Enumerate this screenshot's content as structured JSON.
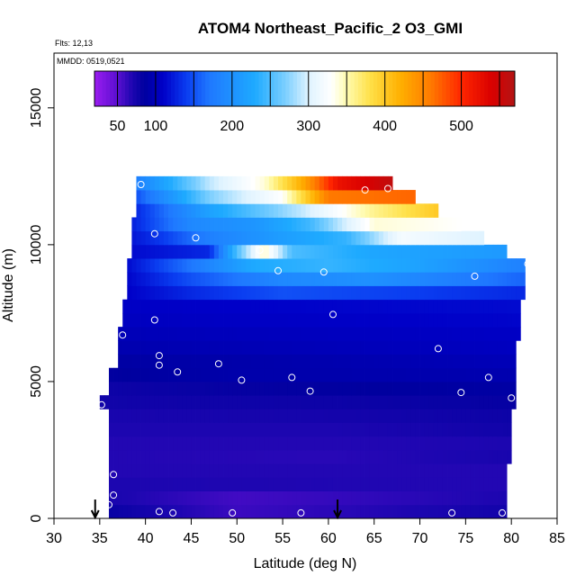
{
  "chart_data": {
    "type": "heatmap",
    "title": "ATOM4 Northeast_Pacific_2 O3_GMI",
    "flights_label": "Flts: 12,13",
    "dates_label": "MMDD: 0519,0521",
    "xlabel": "Latitude (deg N)",
    "ylabel": "Altitude (m)",
    "xlim": [
      30,
      85
    ],
    "ylim": [
      0,
      17000
    ],
    "x_ticks": [
      30,
      35,
      40,
      45,
      50,
      55,
      60,
      65,
      70,
      75,
      80,
      85
    ],
    "y_ticks": [
      0,
      5000,
      10000,
      15000
    ],
    "colorbar": {
      "min": 20,
      "max": 570,
      "tick_values": [
        50,
        100,
        200,
        300,
        400,
        500
      ],
      "separators": [
        150,
        250,
        350,
        450,
        550
      ],
      "stops": [
        [
          20,
          "#9a1cf0"
        ],
        [
          50,
          "#5a0fd0"
        ],
        [
          70,
          "#1c06b0"
        ],
        [
          85,
          "#00009f"
        ],
        [
          110,
          "#0000c8"
        ],
        [
          140,
          "#0a3cf0"
        ],
        [
          170,
          "#1f78ff"
        ],
        [
          230,
          "#1eaaff"
        ],
        [
          270,
          "#7ccfff"
        ],
        [
          300,
          "#dff3ff"
        ],
        [
          330,
          "#ffffff"
        ],
        [
          350,
          "#fffbb0"
        ],
        [
          380,
          "#ffe14a"
        ],
        [
          420,
          "#ffb000"
        ],
        [
          460,
          "#ff7a00"
        ],
        [
          500,
          "#ff2600"
        ],
        [
          540,
          "#d90000"
        ],
        [
          570,
          "#b31414"
        ]
      ]
    },
    "altitude_bins": [
      {
        "alt_min": 0,
        "alt_max": 500,
        "lat_min": 36.0,
        "lat_max": 79.5,
        "profile": [
          [
            36,
            80
          ],
          [
            50,
            60
          ],
          [
            79.5,
            75
          ]
        ]
      },
      {
        "alt_min": 500,
        "alt_max": 1000,
        "lat_min": 36.0,
        "lat_max": 79.5,
        "profile": [
          [
            36,
            72
          ],
          [
            50,
            58
          ],
          [
            79.5,
            70
          ]
        ]
      },
      {
        "alt_min": 1000,
        "alt_max": 1500,
        "lat_min": 36.0,
        "lat_max": 79.5,
        "profile": [
          [
            36,
            70
          ],
          [
            79.5,
            68
          ]
        ]
      },
      {
        "alt_min": 1500,
        "alt_max": 2000,
        "lat_min": 36.0,
        "lat_max": 79.5,
        "profile": [
          [
            36,
            68
          ],
          [
            79.5,
            68
          ]
        ]
      },
      {
        "alt_min": 2000,
        "alt_max": 2500,
        "lat_min": 36.0,
        "lat_max": 80.0,
        "profile": [
          [
            36,
            68
          ],
          [
            60,
            66
          ],
          [
            80,
            72
          ]
        ]
      },
      {
        "alt_min": 2500,
        "alt_max": 3000,
        "lat_min": 36.0,
        "lat_max": 80.0,
        "profile": [
          [
            36,
            68
          ],
          [
            60,
            68
          ],
          [
            80,
            70
          ]
        ]
      },
      {
        "alt_min": 3000,
        "alt_max": 3500,
        "lat_min": 36.0,
        "lat_max": 80.0,
        "profile": [
          [
            36,
            70
          ],
          [
            60,
            70
          ],
          [
            80,
            76
          ]
        ]
      },
      {
        "alt_min": 3500,
        "alt_max": 4000,
        "lat_min": 36.0,
        "lat_max": 80.0,
        "profile": [
          [
            36,
            72
          ],
          [
            60,
            74
          ],
          [
            80,
            78
          ]
        ]
      },
      {
        "alt_min": 4000,
        "alt_max": 4500,
        "lat_min": 35.0,
        "lat_max": 80.5,
        "profile": [
          [
            35,
            76
          ],
          [
            60,
            78
          ],
          [
            80.5,
            82
          ]
        ]
      },
      {
        "alt_min": 4500,
        "alt_max": 5000,
        "lat_min": 36.0,
        "lat_max": 80.5,
        "profile": [
          [
            36,
            78
          ],
          [
            50,
            82
          ],
          [
            80.5,
            88
          ]
        ]
      },
      {
        "alt_min": 5000,
        "alt_max": 5500,
        "lat_min": 36.0,
        "lat_max": 80.5,
        "profile": [
          [
            36,
            84
          ],
          [
            50,
            92
          ],
          [
            80.5,
            95
          ]
        ]
      },
      {
        "alt_min": 5500,
        "alt_max": 6000,
        "lat_min": 37.0,
        "lat_max": 80.5,
        "profile": [
          [
            37,
            88
          ],
          [
            80.5,
            100
          ]
        ]
      },
      {
        "alt_min": 6000,
        "alt_max": 6500,
        "lat_min": 37.0,
        "lat_max": 80.5,
        "profile": [
          [
            37,
            95
          ],
          [
            80.5,
            105
          ]
        ]
      },
      {
        "alt_min": 6500,
        "alt_max": 7000,
        "lat_min": 37.0,
        "lat_max": 81.0,
        "profile": [
          [
            37,
            100
          ],
          [
            81,
            108
          ]
        ]
      },
      {
        "alt_min": 7000,
        "alt_max": 7500,
        "lat_min": 37.5,
        "lat_max": 81.0,
        "profile": [
          [
            37.5,
            105
          ],
          [
            81,
            112
          ]
        ]
      },
      {
        "alt_min": 7500,
        "alt_max": 8000,
        "lat_min": 37.5,
        "lat_max": 81.0,
        "profile": [
          [
            37.5,
            108
          ],
          [
            81,
            115
          ]
        ]
      },
      {
        "alt_min": 8000,
        "alt_max": 8500,
        "lat_min": 38.0,
        "lat_max": 81.5,
        "profile": [
          [
            38,
            110
          ],
          [
            45,
            130
          ],
          [
            55,
            150
          ],
          [
            70,
            140
          ],
          [
            81.5,
            130
          ]
        ]
      },
      {
        "alt_min": 8500,
        "alt_max": 9000,
        "lat_min": 38.0,
        "lat_max": 81.5,
        "profile": [
          [
            38,
            112
          ],
          [
            45,
            150
          ],
          [
            55,
            190
          ],
          [
            65,
            200
          ],
          [
            81.5,
            160
          ]
        ]
      },
      {
        "alt_min": 9000,
        "alt_max": 9500,
        "lat_min": 38.0,
        "lat_max": 81.5,
        "profile": [
          [
            38,
            115
          ],
          [
            45,
            170
          ],
          [
            52,
            230
          ],
          [
            60,
            240
          ],
          [
            70,
            220
          ],
          [
            81.5,
            180
          ]
        ]
      },
      {
        "alt_min": 9500,
        "alt_max": 10000,
        "lat_min": 38.5,
        "lat_max": 79.5,
        "profile": [
          [
            38.5,
            115
          ],
          [
            47,
            130
          ],
          [
            50,
            250
          ],
          [
            53,
            345
          ],
          [
            56,
            250
          ],
          [
            65,
            225
          ],
          [
            79.5,
            210
          ]
        ]
      },
      {
        "alt_min": 10000,
        "alt_max": 10500,
        "lat_min": 38.5,
        "lat_max": 77.0,
        "profile": [
          [
            38.5,
            120
          ],
          [
            42,
            140
          ],
          [
            47,
            180
          ],
          [
            55,
            215
          ],
          [
            62,
            240
          ],
          [
            68,
            320
          ],
          [
            77,
            300
          ]
        ]
      },
      {
        "alt_min": 10500,
        "alt_max": 11000,
        "lat_min": 38.5,
        "lat_max": 74.5,
        "profile": [
          [
            38.5,
            125
          ],
          [
            45,
            190
          ],
          [
            52,
            205
          ],
          [
            58,
            245
          ],
          [
            65,
            340
          ],
          [
            74.5,
            330
          ]
        ]
      },
      {
        "alt_min": 11000,
        "alt_max": 11500,
        "lat_min": 39.0,
        "lat_max": 72.0,
        "profile": [
          [
            39,
            130
          ],
          [
            47,
            220
          ],
          [
            57,
            290
          ],
          [
            65,
            360
          ],
          [
            72,
            400
          ]
        ]
      },
      {
        "alt_min": 11500,
        "alt_max": 12000,
        "lat_min": 39.0,
        "lat_max": 69.5,
        "profile": [
          [
            39,
            150
          ],
          [
            47,
            270
          ],
          [
            55,
            330
          ],
          [
            60,
            460
          ],
          [
            69.5,
            470
          ]
        ]
      },
      {
        "alt_min": 12000,
        "alt_max": 12500,
        "lat_min": 39.0,
        "lat_max": 67.0,
        "profile": [
          [
            39,
            180
          ],
          [
            47,
            290
          ],
          [
            53,
            340
          ],
          [
            57,
            420
          ],
          [
            61,
            520
          ],
          [
            67,
            560
          ]
        ]
      }
    ],
    "sample_points": [
      {
        "lat": 39.5,
        "alt": 12200
      },
      {
        "lat": 64.0,
        "alt": 12000
      },
      {
        "lat": 66.5,
        "alt": 12050
      },
      {
        "lat": 41.0,
        "alt": 10400
      },
      {
        "lat": 45.5,
        "alt": 10250
      },
      {
        "lat": 52.5,
        "alt": 9800
      },
      {
        "lat": 54.5,
        "alt": 9050
      },
      {
        "lat": 59.5,
        "alt": 9000
      },
      {
        "lat": 76.0,
        "alt": 8850
      },
      {
        "lat": 81.8,
        "alt": 9300
      },
      {
        "lat": 41.0,
        "alt": 7250
      },
      {
        "lat": 60.5,
        "alt": 7450
      },
      {
        "lat": 37.5,
        "alt": 6700
      },
      {
        "lat": 72.0,
        "alt": 6200
      },
      {
        "lat": 41.5,
        "alt": 5950
      },
      {
        "lat": 41.5,
        "alt": 5600
      },
      {
        "lat": 48.0,
        "alt": 5650
      },
      {
        "lat": 43.5,
        "alt": 5350
      },
      {
        "lat": 50.5,
        "alt": 5050
      },
      {
        "lat": 56.0,
        "alt": 5150
      },
      {
        "lat": 58.0,
        "alt": 4650
      },
      {
        "lat": 77.5,
        "alt": 5150
      },
      {
        "lat": 74.5,
        "alt": 4600
      },
      {
        "lat": 80.0,
        "alt": 4400
      },
      {
        "lat": 35.2,
        "alt": 4150
      },
      {
        "lat": 36.5,
        "alt": 1600
      },
      {
        "lat": 36.5,
        "alt": 850
      },
      {
        "lat": 36.0,
        "alt": 500
      },
      {
        "lat": 41.5,
        "alt": 250
      },
      {
        "lat": 43.0,
        "alt": 200
      },
      {
        "lat": 49.5,
        "alt": 200
      },
      {
        "lat": 57.0,
        "alt": 200
      },
      {
        "lat": 73.5,
        "alt": 200
      },
      {
        "lat": 79.0,
        "alt": 200
      }
    ],
    "arrows": [
      {
        "lat": 34.5
      },
      {
        "lat": 61.0
      }
    ]
  }
}
